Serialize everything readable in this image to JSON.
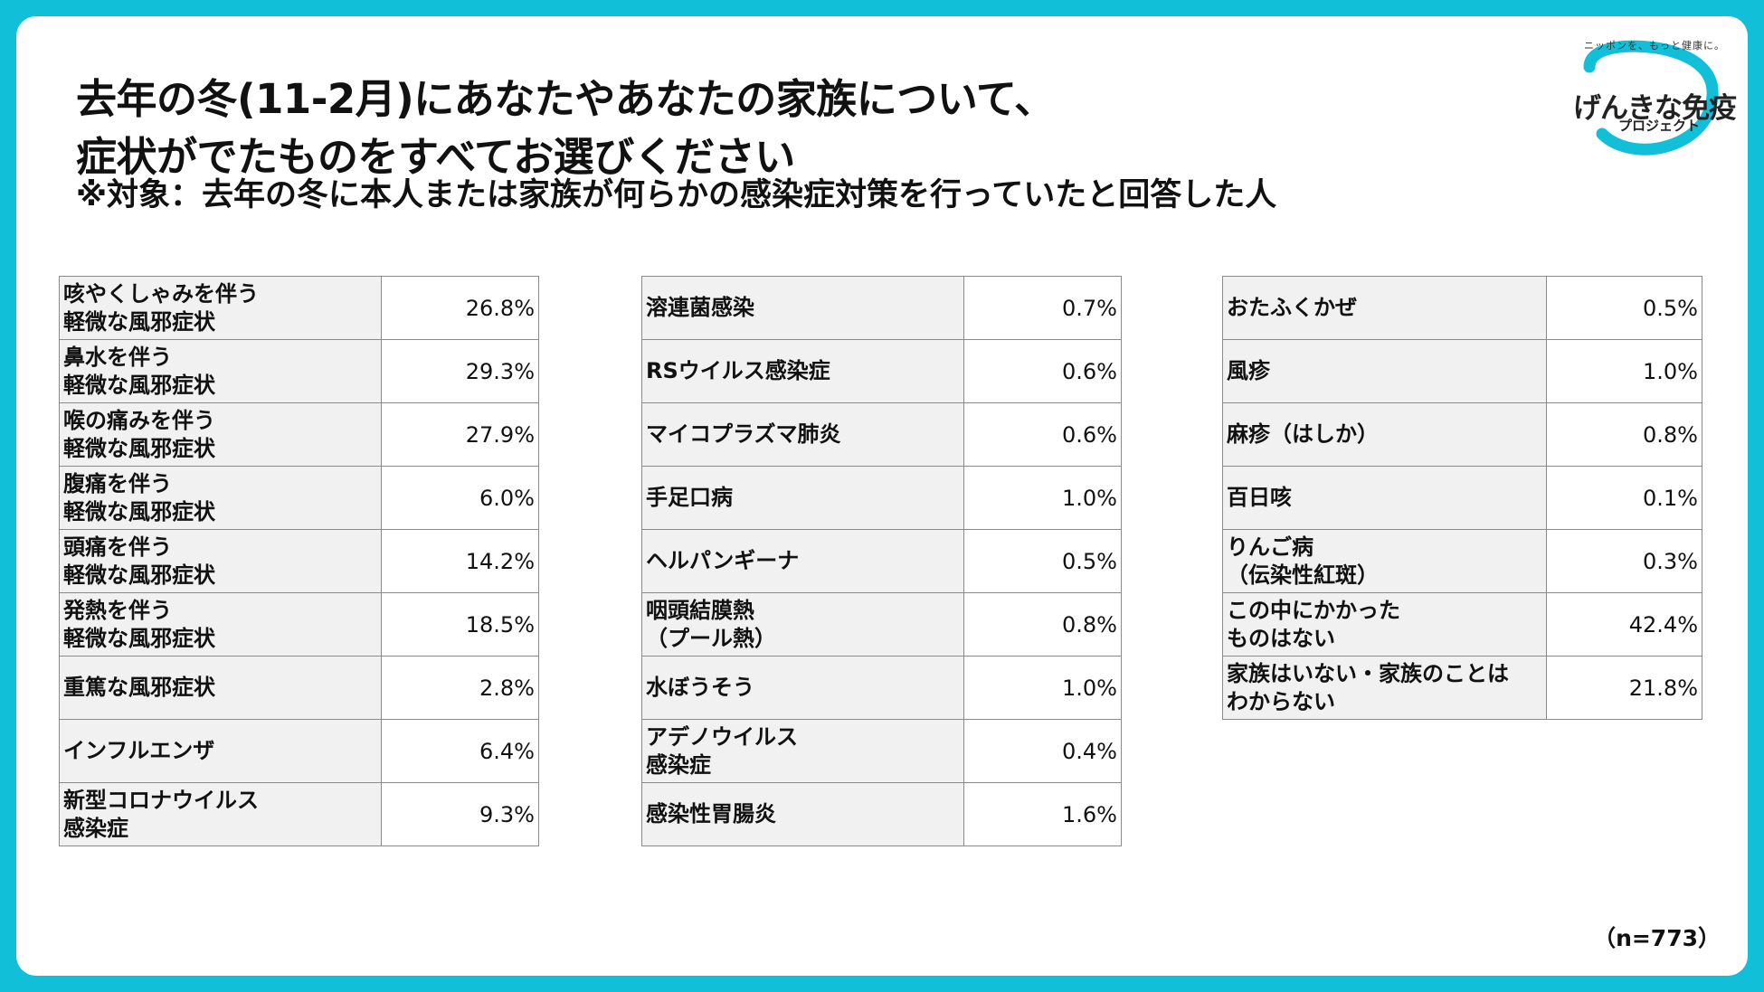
{
  "title_line1": "去年の冬(11-2月)にあなたやあなたの家族について、",
  "title_line2": "症状がでたものをすべてお選びください",
  "subtitle": "※対象：去年の冬に本人または家族が何らかの感染症対策を行っていたと回答した人",
  "logo": {
    "main": "げんきな免疫",
    "sub": "プロジェクト",
    "tagline": "ニッポンを、もっと健康に。",
    "accent_color": "#11bfd9"
  },
  "tables": [
    {
      "rows": [
        {
          "label": "咳やくしゃみを伴う\n軽微な風邪症状",
          "value": "26.8%"
        },
        {
          "label": "鼻水を伴う\n軽微な風邪症状",
          "value": "29.3%"
        },
        {
          "label": "喉の痛みを伴う\n軽微な風邪症状",
          "value": "27.9%"
        },
        {
          "label": "腹痛を伴う\n軽微な風邪症状",
          "value": "6.0%"
        },
        {
          "label": "頭痛を伴う\n軽微な風邪症状",
          "value": "14.2%"
        },
        {
          "label": "発熱を伴う\n軽微な風邪症状",
          "value": "18.5%"
        },
        {
          "label": "重篤な風邪症状",
          "value": "2.8%"
        },
        {
          "label": "インフルエンザ",
          "value": "6.4%"
        },
        {
          "label": "新型コロナウイルス\n感染症",
          "value": "9.3%"
        }
      ]
    },
    {
      "rows": [
        {
          "label": "溶連菌感染",
          "value": "0.7%"
        },
        {
          "label": "RSウイルス感染症",
          "value": "0.6%"
        },
        {
          "label": "マイコプラズマ肺炎",
          "value": "0.6%"
        },
        {
          "label": "手足口病",
          "value": "1.0%"
        },
        {
          "label": "ヘルパンギーナ",
          "value": "0.5%"
        },
        {
          "label": "咽頭結膜熱\n（プール熱）",
          "value": "0.8%"
        },
        {
          "label": "水ぼうそう",
          "value": "1.0%"
        },
        {
          "label": "アデノウイルス\n感染症",
          "value": "0.4%"
        },
        {
          "label": "感染性胃腸炎",
          "value": "1.6%"
        }
      ]
    },
    {
      "rows": [
        {
          "label": "おたふくかぜ",
          "value": "0.5%"
        },
        {
          "label": "風疹",
          "value": "1.0%"
        },
        {
          "label": "麻疹（はしか）",
          "value": "0.8%"
        },
        {
          "label": "百日咳",
          "value": "0.1%"
        },
        {
          "label": "りんご病\n（伝染性紅斑）",
          "value": "0.3%"
        },
        {
          "label": "この中にかかった\nものはない",
          "value": "42.4%"
        },
        {
          "label": "家族はいない・家族のことは\nわからない",
          "value": "21.8%"
        }
      ]
    }
  ],
  "sample_size": "（n=773）"
}
